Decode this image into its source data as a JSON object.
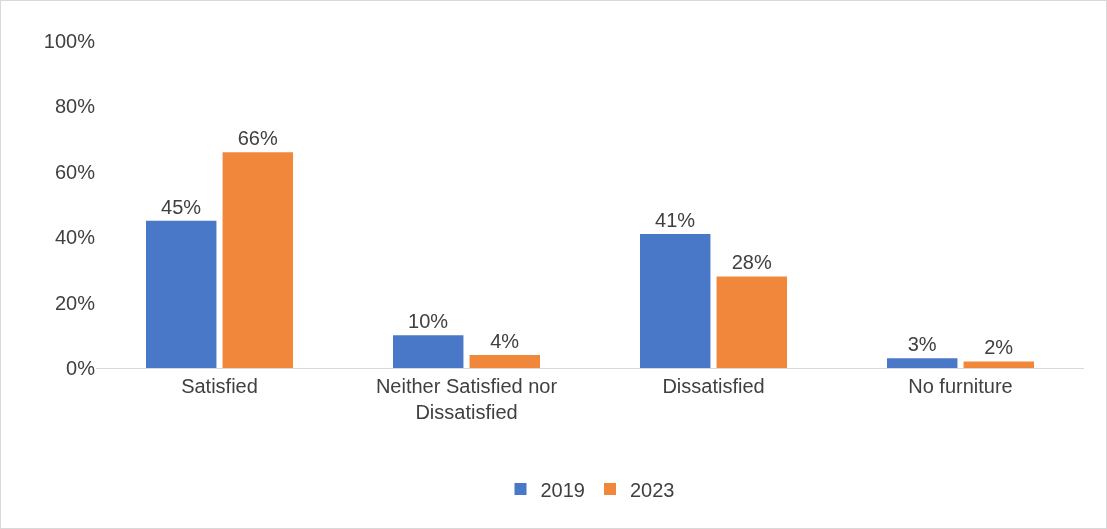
{
  "chart_data": {
    "type": "bar",
    "categories": [
      "Satisfied",
      "Neither Satisfied nor Dissatisfied",
      "Dissatisfied",
      "No furniture"
    ],
    "series": [
      {
        "name": "2019",
        "color": "#4a78c8",
        "values": [
          45,
          10,
          41,
          3
        ],
        "value_labels": [
          "45%",
          "10%",
          "41%",
          "3%"
        ]
      },
      {
        "name": "2023",
        "color": "#f0873a",
        "values": [
          66,
          4,
          28,
          2
        ],
        "value_labels": [
          "66%",
          "4%",
          "28%",
          "2%"
        ]
      }
    ],
    "ylim": [
      0,
      100
    ],
    "yticks": [
      {
        "value": 0,
        "label": "0%"
      },
      {
        "value": 20,
        "label": "20%"
      },
      {
        "value": 40,
        "label": "40%"
      },
      {
        "value": 60,
        "label": "60%"
      },
      {
        "value": 80,
        "label": "80%"
      },
      {
        "value": 100,
        "label": "100%"
      }
    ],
    "grid": false,
    "legend": "bottom"
  }
}
